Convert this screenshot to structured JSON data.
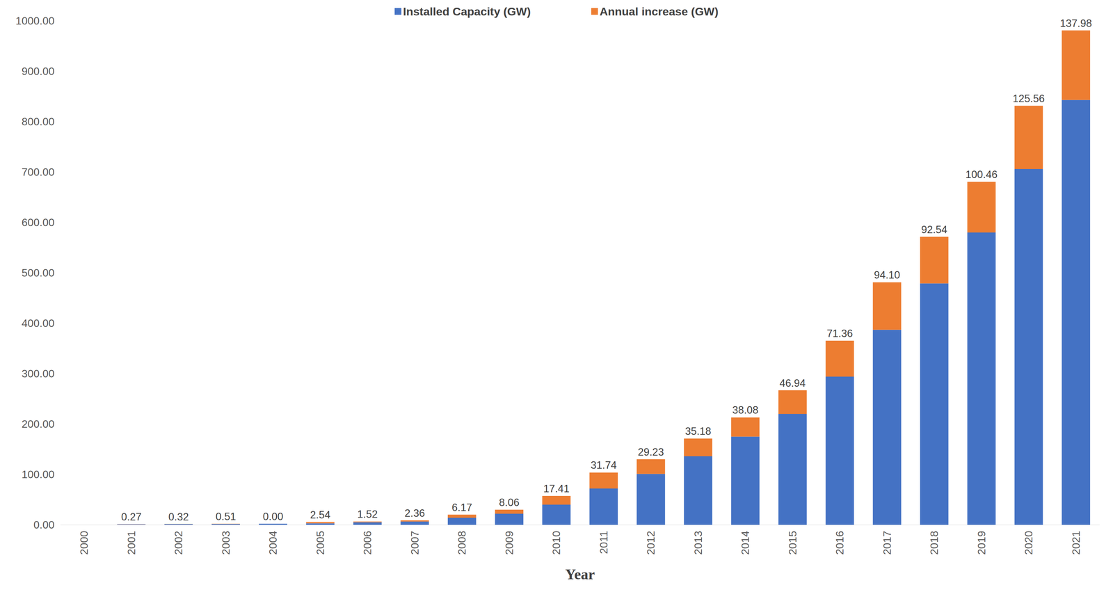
{
  "chart_data": {
    "type": "bar",
    "stacked": true,
    "grid": false,
    "legend": "top",
    "x_label": "Year",
    "categories": [
      "2000",
      "2001",
      "2002",
      "2003",
      "2004",
      "2005",
      "2006",
      "2007",
      "2008",
      "2009",
      "2010",
      "2011",
      "2012",
      "2013",
      "2014",
      "2015",
      "2016",
      "2017",
      "2018",
      "2019",
      "2020",
      "2021"
    ],
    "ylim": [
      0,
      1000
    ],
    "yticks": [
      {
        "value": 0,
        "label": "0.00"
      },
      {
        "value": 100,
        "label": "100.00"
      },
      {
        "value": 200,
        "label": "200.00"
      },
      {
        "value": 300,
        "label": "300.00"
      },
      {
        "value": 400,
        "label": "400.00"
      },
      {
        "value": 500,
        "label": "500.00"
      },
      {
        "value": 600,
        "label": "600.00"
      },
      {
        "value": 700,
        "label": "700.00"
      },
      {
        "value": 800,
        "label": "800.00"
      },
      {
        "value": 900,
        "label": "900.00"
      },
      {
        "value": 1000,
        "label": "1000.00"
      }
    ],
    "series": [
      {
        "name": "Installed Capacity (GW)",
        "color": "#4472c4",
        "data_labels": false,
        "values": [
          0,
          1,
          1.3,
          1.6,
          2.1,
          3,
          5,
          6.5,
          14,
          22,
          40,
          72,
          101,
          136,
          175,
          220,
          294,
          387,
          479,
          580,
          706,
          843
        ]
      },
      {
        "name": "Annual increase (GW)",
        "color": "#ed7d31",
        "data_labels": true,
        "values": [
          null,
          0.27,
          0.32,
          0.51,
          0,
          2.54,
          1.52,
          2.36,
          6.17,
          8.06,
          17.41,
          31.74,
          29.23,
          35.18,
          38.08,
          46.94,
          71.36,
          94.1,
          92.54,
          100.46,
          125.56,
          137.98
        ],
        "value_labels": [
          null,
          "0.27",
          "0.32",
          "0.51",
          "0.00",
          "2.54",
          "1.52",
          "2.36",
          "6.17",
          "8.06",
          "17.41",
          "31.74",
          "29.23",
          "35.18",
          "38.08",
          "46.94",
          "71.36",
          "94.10",
          "92.54",
          "100.46",
          "125.56",
          "137.98"
        ]
      }
    ]
  }
}
